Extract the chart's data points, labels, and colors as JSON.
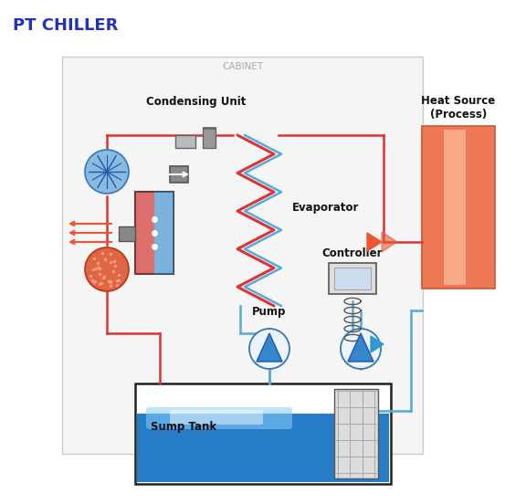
{
  "title": "PT CHILLER",
  "title_color": "#2233bb",
  "cabinet_label": "CABINET",
  "cabinet_label_color": "#aaaaaa",
  "bg_color": "#ffffff",
  "heat_source_label": "Heat Source\n(Process)",
  "line_blue": "#55aadd",
  "line_red": "#dd3333",
  "line_pink": "#ee8888",
  "arrow_blue": "#3399cc",
  "arrow_red": "#ee5533",
  "condensing_unit_label": "Condensing Unit",
  "evaporator_label": "Evaporator",
  "pump_label": "Pump",
  "sump_tank_label": "Sump Tank",
  "controller_label": "Controller"
}
